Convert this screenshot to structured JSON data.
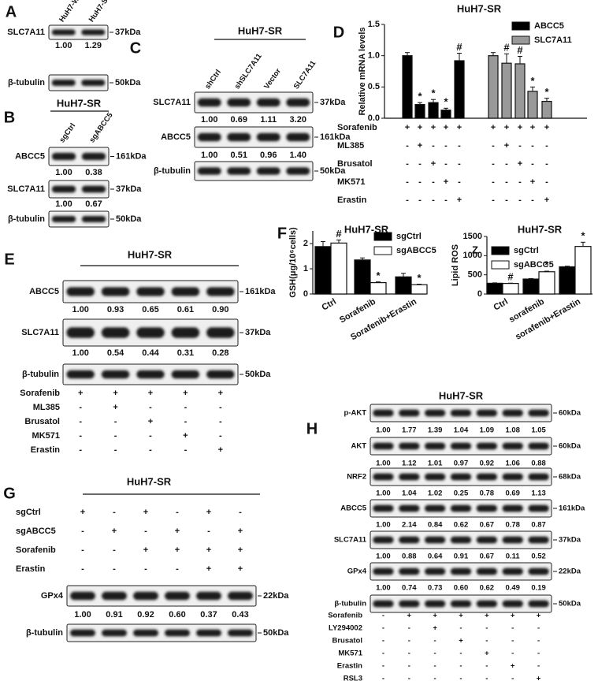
{
  "blots": [
    {
      "letter": "A",
      "lanes": [
        "HuH7-WT",
        "HuH7-SR"
      ],
      "rows": [
        {
          "label": "SLC7A11",
          "kda": "37kDa",
          "quant": [
            "1.00",
            "1.29"
          ]
        },
        {
          "label": "β-tubulin",
          "kda": "50kDa"
        }
      ]
    },
    {
      "letter": "B",
      "title": "HuH7-SR",
      "lanes": [
        "sgCtrl",
        "sgABCC5"
      ],
      "rows": [
        {
          "label": "ABCC5",
          "kda": "161kDa",
          "quant": [
            "1.00",
            "0.38"
          ]
        },
        {
          "label": "SLC7A11",
          "kda": "37kDa",
          "quant": [
            "1.00",
            "0.67"
          ]
        },
        {
          "label": "β-tubulin",
          "kda": "50kDa"
        }
      ]
    },
    {
      "letter": "C",
      "title": "HuH7-SR",
      "lanes": [
        "shCtrl",
        "shSLC7A11",
        "Vector",
        "SLC7A11"
      ],
      "rows": [
        {
          "label": "SLC7A11",
          "kda": "37kDa",
          "quant": [
            "1.00",
            "0.69",
            "1.11",
            "3.20"
          ]
        },
        {
          "label": "ABCC5",
          "kda": "161kDa",
          "quant": [
            "1.00",
            "0.51",
            "0.96",
            "1.40"
          ]
        },
        {
          "label": "β-tubulin",
          "kda": "50kDa"
        }
      ]
    },
    {
      "letter": "E",
      "title": "HuH7-SR",
      "rows": [
        {
          "label": "ABCC5",
          "kda": "161kDa",
          "quant": [
            "1.00",
            "0.93",
            "0.65",
            "0.61",
            "0.90"
          ]
        },
        {
          "label": "SLC7A11",
          "kda": "37kDa",
          "quant": [
            "1.00",
            "0.54",
            "0.44",
            "0.31",
            "0.28"
          ]
        },
        {
          "label": "β-tubulin",
          "kda": "50kDa"
        }
      ],
      "treatments": [
        {
          "label": "Sorafenib",
          "signs": [
            "+",
            "+",
            "+",
            "+",
            "+"
          ]
        },
        {
          "label": "ML385",
          "signs": [
            "-",
            "+",
            "-",
            "-",
            "-"
          ]
        },
        {
          "label": "Brusatol",
          "signs": [
            "-",
            "-",
            "+",
            "-",
            "-"
          ]
        },
        {
          "label": "MK571",
          "signs": [
            "-",
            "-",
            "-",
            "+",
            "-"
          ]
        },
        {
          "label": "Erastin",
          "signs": [
            "-",
            "-",
            "-",
            "-",
            "+"
          ]
        }
      ]
    },
    {
      "letter": "G",
      "title": "HuH7-SR",
      "rows": [
        {
          "label": "GPx4",
          "kda": "22kDa",
          "quant": [
            "1.00",
            "0.91",
            "0.92",
            "0.60",
            "0.37",
            "0.43"
          ]
        },
        {
          "label": "β-tubulin",
          "kda": "50kDa"
        }
      ],
      "treatments": [
        {
          "label": "sgCtrl",
          "signs": [
            "+",
            "-",
            "+",
            "-",
            "+",
            "-"
          ]
        },
        {
          "label": "sgABCC5",
          "signs": [
            "-",
            "+",
            "-",
            "+",
            "-",
            "+"
          ]
        },
        {
          "label": "Sorafenib",
          "signs": [
            "-",
            "-",
            "+",
            "+",
            "+",
            "+"
          ]
        },
        {
          "label": "Erastin",
          "signs": [
            "-",
            "-",
            "-",
            "-",
            "+",
            "+"
          ]
        }
      ]
    },
    {
      "letter": "H",
      "title": "HuH7-SR",
      "rows": [
        {
          "label": "p-AKT",
          "kda": "60kDa",
          "quant": [
            "1.00",
            "1.77",
            "1.39",
            "1.04",
            "1.09",
            "1.08",
            "1.05"
          ]
        },
        {
          "label": "AKT",
          "kda": "60kDa",
          "quant": [
            "1.00",
            "1.12",
            "1.01",
            "0.97",
            "0.92",
            "1.06",
            "0.88"
          ]
        },
        {
          "label": "NRF2",
          "kda": "68kDa",
          "quant": [
            "1.00",
            "1.04",
            "1.02",
            "0.25",
            "0.78",
            "0.69",
            "1.13"
          ]
        },
        {
          "label": "ABCC5",
          "kda": "161kDa",
          "quant": [
            "1.00",
            "2.14",
            "0.84",
            "0.62",
            "0.67",
            "0.78",
            "0.87"
          ]
        },
        {
          "label": "SLC7A11",
          "kda": "37kDa",
          "quant": [
            "1.00",
            "0.88",
            "0.64",
            "0.91",
            "0.67",
            "0.11",
            "0.52"
          ]
        },
        {
          "label": "GPx4",
          "kda": "22kDa",
          "quant": [
            "1.00",
            "0.74",
            "0.73",
            "0.60",
            "0.62",
            "0.49",
            "0.19"
          ]
        },
        {
          "label": "β-tubulin",
          "kda": "50kDa"
        }
      ],
      "treatments": [
        {
          "label": "Sorafenib",
          "signs": [
            "-",
            "+",
            "+",
            "+",
            "+",
            "+",
            "+"
          ]
        },
        {
          "label": "LY294002",
          "signs": [
            "-",
            "-",
            "+",
            "-",
            "-",
            "-",
            "-"
          ]
        },
        {
          "label": "Brusatol",
          "signs": [
            "-",
            "-",
            "-",
            "+",
            "-",
            "-",
            "-"
          ]
        },
        {
          "label": "MK571",
          "signs": [
            "-",
            "-",
            "-",
            "-",
            "+",
            "-",
            "-"
          ]
        },
        {
          "label": "Erastin",
          "signs": [
            "-",
            "-",
            "-",
            "-",
            "-",
            "+",
            "-"
          ]
        },
        {
          "label": "RSL3",
          "signs": [
            "-",
            "-",
            "-",
            "-",
            "-",
            "-",
            "+"
          ]
        }
      ]
    }
  ],
  "chart_data": [
    {
      "type": "bar",
      "panel": "D",
      "title": "HuH7-SR",
      "ylabel": "Relative mRNA levels",
      "ylim": [
        0,
        1.5
      ],
      "yticks": [
        {
          "value": 0,
          "label": "0.0"
        },
        {
          "value": 0.5,
          "label": "0.5"
        },
        {
          "value": 1,
          "label": "1.0"
        },
        {
          "value": 1.5,
          "label": "1.5"
        }
      ],
      "series": [
        {
          "name": "ABCC5",
          "color": "#000000",
          "values": [
            1.0,
            0.22,
            0.25,
            0.13,
            0.92
          ],
          "errors": [
            0.05,
            0.03,
            0.05,
            0.03,
            0.12
          ],
          "annotations": [
            null,
            "*",
            "*",
            "*",
            "#"
          ]
        },
        {
          "name": "SLC7A11",
          "color": "#999999",
          "values": [
            1.0,
            0.88,
            0.87,
            0.43,
            0.27
          ],
          "errors": [
            0.05,
            0.15,
            0.12,
            0.07,
            0.05
          ],
          "annotations": [
            null,
            "#",
            "#",
            "*",
            "*"
          ]
        }
      ],
      "treatments": [
        {
          "label": "Sorafenib",
          "signs": [
            "+",
            "+",
            "+",
            "+",
            "+",
            "+",
            "+",
            "+",
            "+",
            "+"
          ]
        },
        {
          "label": "ML385",
          "signs": [
            "-",
            "+",
            "-",
            "-",
            "-",
            "-",
            "+",
            "-",
            "-",
            "-"
          ]
        },
        {
          "label": "Brusatol",
          "signs": [
            "-",
            "-",
            "+",
            "-",
            "-",
            "-",
            "-",
            "+",
            "-",
            "-"
          ]
        },
        {
          "label": "MK571",
          "signs": [
            "-",
            "-",
            "-",
            "+",
            "-",
            "-",
            "-",
            "-",
            "+",
            "-"
          ]
        },
        {
          "label": "Erastin",
          "signs": [
            "-",
            "-",
            "-",
            "-",
            "+",
            "-",
            "-",
            "-",
            "-",
            "+"
          ]
        }
      ]
    },
    {
      "type": "bar",
      "panel": "F",
      "title": "HuH7-SR",
      "ylabel": "GSH(μg/10⁶cells)",
      "categories": [
        "Ctrl",
        "Sorafenib",
        "Sorafenib+Erastin"
      ],
      "ylim": [
        0,
        2.5
      ],
      "yticks": [
        0,
        1,
        2
      ],
      "series": [
        {
          "name": "sgCtrl",
          "color": "#000000",
          "values": [
            1.88,
            1.35,
            0.68
          ],
          "errors": [
            0.2,
            0.08,
            0.14
          ],
          "annotations": [
            null,
            null,
            null
          ]
        },
        {
          "name": "sgABCC5",
          "color": "#ffffff",
          "values": [
            2.02,
            0.45,
            0.37
          ],
          "errors": [
            0.12,
            0.03,
            0.02
          ],
          "annotations": [
            "#",
            "*",
            "*"
          ]
        }
      ]
    },
    {
      "type": "bar",
      "title": "HuH7-SR",
      "ylabel": "Lipid ROS",
      "annotation": "Z",
      "categories": [
        "Ctrl",
        "sorafenib",
        "sorafenib+Erastin"
      ],
      "ylim": [
        0,
        1500
      ],
      "yticks": [
        0,
        500,
        1000,
        1500
      ],
      "series": [
        {
          "name": "sgCtrl",
          "color": "#000000",
          "values": [
            280,
            390,
            710
          ],
          "errors": [
            10,
            12,
            15
          ],
          "annotations": [
            null,
            null,
            null
          ]
        },
        {
          "name": "sgABCC5",
          "color": "#ffffff",
          "values": [
            275,
            580,
            1240
          ],
          "errors": [
            8,
            15,
            110
          ],
          "annotations": [
            "#",
            "*",
            "*"
          ]
        }
      ]
    }
  ]
}
